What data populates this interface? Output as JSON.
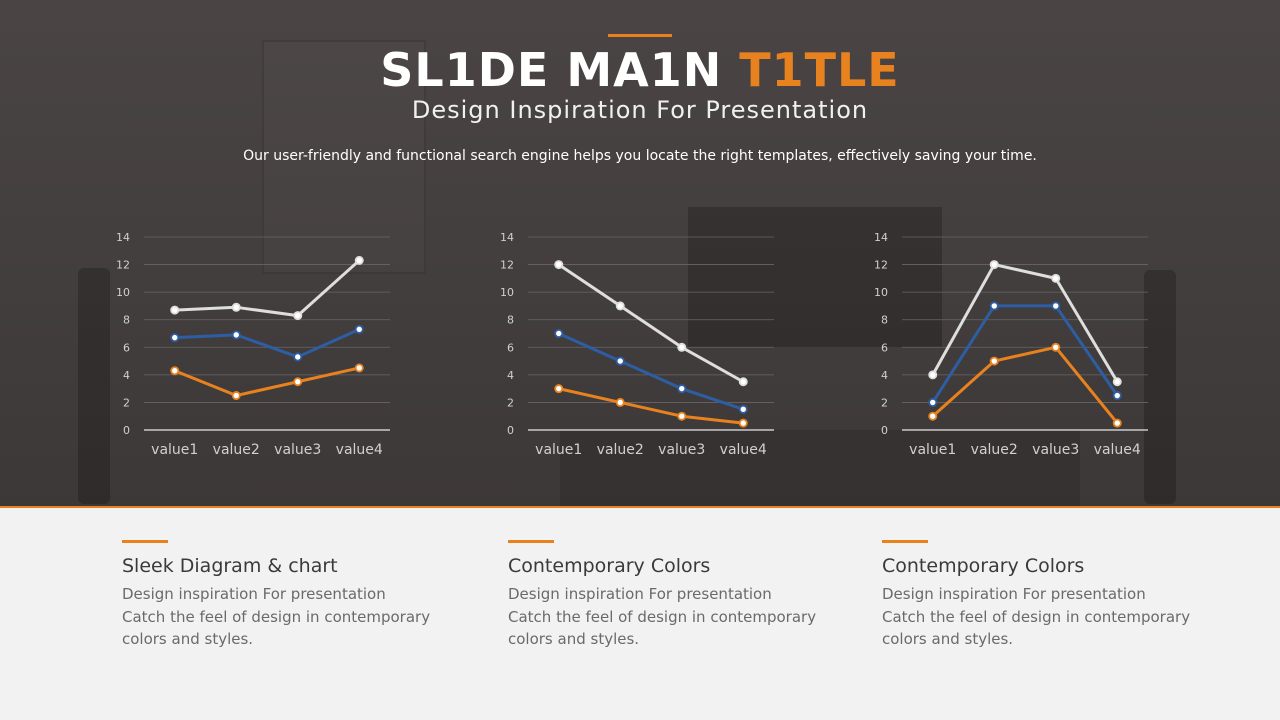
{
  "header": {
    "title_main": "SL1DE MA1N ",
    "title_highlight": "T1TLE",
    "subtitle": "Design Inspiration For Presentation",
    "description": "Our user-friendly and functional search engine helps you locate the right templates, effectively saving your time."
  },
  "colors": {
    "accent": "#e8821e",
    "series_white": "#dedede",
    "series_blue": "#2d5ea3",
    "series_orange": "#e8821e",
    "axis_text": "#d0d0d0",
    "grid": "#6b6565"
  },
  "chart_data": [
    {
      "type": "line",
      "categories": [
        "value1",
        "value2",
        "value3",
        "value4"
      ],
      "ylim": [
        0,
        14
      ],
      "yticks": [
        0,
        2,
        4,
        6,
        8,
        10,
        12,
        14
      ],
      "grid": true,
      "series": [
        {
          "values": [
            8.7,
            8.9,
            8.3,
            12.3
          ],
          "color": "#dedede"
        },
        {
          "values": [
            6.7,
            6.9,
            5.3,
            7.3
          ],
          "color": "#2d5ea3"
        },
        {
          "values": [
            4.3,
            2.5,
            3.5,
            4.5
          ],
          "color": "#e8821e"
        }
      ]
    },
    {
      "type": "line",
      "categories": [
        "value1",
        "value2",
        "value3",
        "value4"
      ],
      "ylim": [
        0,
        14
      ],
      "yticks": [
        0,
        2,
        4,
        6,
        8,
        10,
        12,
        14
      ],
      "grid": true,
      "series": [
        {
          "values": [
            12,
            9,
            6,
            3.5
          ],
          "color": "#dedede"
        },
        {
          "values": [
            7,
            5,
            3,
            1.5
          ],
          "color": "#2d5ea3"
        },
        {
          "values": [
            3,
            2,
            1,
            0.5
          ],
          "color": "#e8821e"
        }
      ]
    },
    {
      "type": "line",
      "categories": [
        "value1",
        "value2",
        "value3",
        "value4"
      ],
      "ylim": [
        0,
        14
      ],
      "yticks": [
        0,
        2,
        4,
        6,
        8,
        10,
        12,
        14
      ],
      "grid": true,
      "series": [
        {
          "values": [
            4,
            12,
            11,
            3.5
          ],
          "color": "#dedede"
        },
        {
          "values": [
            2,
            9,
            9,
            2.5
          ],
          "color": "#2d5ea3"
        },
        {
          "values": [
            1,
            5,
            6,
            0.5
          ],
          "color": "#e8821e"
        }
      ]
    }
  ],
  "cards": [
    {
      "title": "Sleek Diagram & chart",
      "line1": "Design inspiration For presentation",
      "line2": "Catch the feel of design in contemporary",
      "line3": "colors and styles."
    },
    {
      "title": "Contemporary Colors",
      "line1": "Design inspiration For presentation",
      "line2": "Catch the feel of design in contemporary",
      "line3": "colors and styles."
    },
    {
      "title": "Contemporary Colors",
      "line1": "Design inspiration For presentation",
      "line2": "Catch the feel of design in contemporary",
      "line3": "colors and styles."
    }
  ]
}
